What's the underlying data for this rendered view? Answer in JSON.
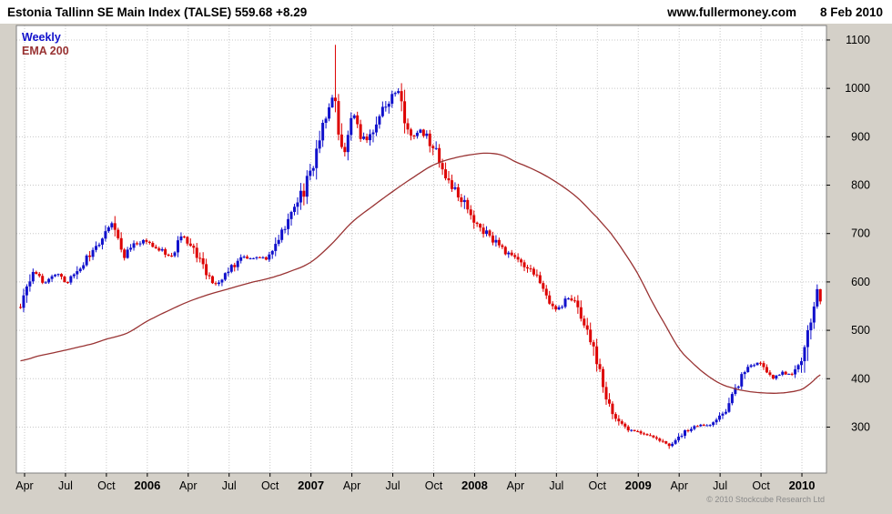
{
  "header": {
    "title": "Estonia Tallinn SE Main Index (TALSE) 559.68 +8.29",
    "site": "www.fullermoney.com",
    "date": "8 Feb 2010"
  },
  "legend": {
    "weekly": "Weekly",
    "ema": "EMA 200"
  },
  "footer": {
    "copyright": "© 2010 Stockcube Research Ltd"
  },
  "colors": {
    "up": "#1111cc",
    "down": "#dd0000",
    "ema": "#993333",
    "grid": "#c8c8c8",
    "frame": "#7f7f7f",
    "panel_bg": "#d4d0c8",
    "plot_bg": "#ffffff",
    "axis_text": "#000000",
    "copyright_text": "#8a8a8a"
  },
  "chart_data": {
    "type": "candlestick",
    "title": "Estonia Tallinn SE Main Index (TALSE)",
    "timeframe": "Weekly",
    "overlay": "EMA 200",
    "last_price": 559.68,
    "change": 8.29,
    "date_shown": "8 Feb 2010",
    "ylim": [
      205,
      1130
    ],
    "yticks": [
      300,
      400,
      500,
      600,
      700,
      800,
      900,
      1000,
      1100
    ],
    "x_months_range": [
      2.4,
      61.8
    ],
    "weeks_total": 255,
    "x_ticks": [
      {
        "m": 3,
        "label": "Apr",
        "bold": false
      },
      {
        "m": 6,
        "label": "Jul",
        "bold": false
      },
      {
        "m": 9,
        "label": "Oct",
        "bold": false
      },
      {
        "m": 12,
        "label": "2006",
        "bold": true
      },
      {
        "m": 15,
        "label": "Apr",
        "bold": false
      },
      {
        "m": 18,
        "label": "Jul",
        "bold": false
      },
      {
        "m": 21,
        "label": "Oct",
        "bold": false
      },
      {
        "m": 24,
        "label": "2007",
        "bold": true
      },
      {
        "m": 27,
        "label": "Apr",
        "bold": false
      },
      {
        "m": 30,
        "label": "Jul",
        "bold": false
      },
      {
        "m": 33,
        "label": "Oct",
        "bold": false
      },
      {
        "m": 36,
        "label": "2008",
        "bold": true
      },
      {
        "m": 39,
        "label": "Apr",
        "bold": false
      },
      {
        "m": 42,
        "label": "Jul",
        "bold": false
      },
      {
        "m": 45,
        "label": "Oct",
        "bold": false
      },
      {
        "m": 48,
        "label": "2009",
        "bold": true
      },
      {
        "m": 51,
        "label": "Apr",
        "bold": false
      },
      {
        "m": 54,
        "label": "Jul",
        "bold": false
      },
      {
        "m": 57,
        "label": "Oct",
        "bold": false
      },
      {
        "m": 60,
        "label": "2010",
        "bold": true
      }
    ],
    "price_monthly": [
      [
        2.7,
        552
      ],
      [
        3.2,
        585
      ],
      [
        3.6,
        618
      ],
      [
        4,
        612
      ],
      [
        4.5,
        598
      ],
      [
        5,
        608
      ],
      [
        5.5,
        615
      ],
      [
        6,
        600
      ],
      [
        6.5,
        612
      ],
      [
        7,
        628
      ],
      [
        7.5,
        645
      ],
      [
        8,
        662
      ],
      [
        8.5,
        680
      ],
      [
        9,
        700
      ],
      [
        9.4,
        716
      ],
      [
        9.8,
        688
      ],
      [
        10.2,
        652
      ],
      [
        10.7,
        668
      ],
      [
        11.2,
        678
      ],
      [
        12,
        686
      ],
      [
        12.5,
        672
      ],
      [
        13,
        668
      ],
      [
        13.5,
        655
      ],
      [
        14,
        662
      ],
      [
        14.4,
        690
      ],
      [
        15,
        684
      ],
      [
        15.5,
        662
      ],
      [
        16,
        640
      ],
      [
        16.5,
        615
      ],
      [
        17,
        598
      ],
      [
        17.5,
        608
      ],
      [
        18,
        622
      ],
      [
        18.5,
        638
      ],
      [
        19,
        650
      ],
      [
        19.5,
        646
      ],
      [
        20,
        652
      ],
      [
        20.5,
        648
      ],
      [
        21,
        658
      ],
      [
        21.5,
        678
      ],
      [
        22,
        706
      ],
      [
        22.5,
        730
      ],
      [
        23,
        762
      ],
      [
        23.5,
        790
      ],
      [
        24,
        828
      ],
      [
        24.5,
        878
      ],
      [
        25,
        930
      ],
      [
        25.5,
        975
      ],
      [
        25.8,
        988
      ],
      [
        26.1,
        905
      ],
      [
        26.5,
        872
      ],
      [
        27,
        948
      ],
      [
        27.5,
        915
      ],
      [
        28,
        892
      ],
      [
        28.5,
        912
      ],
      [
        29,
        942
      ],
      [
        29.6,
        968
      ],
      [
        30,
        988
      ],
      [
        30.4,
        992
      ],
      [
        30.8,
        952
      ],
      [
        31.2,
        912
      ],
      [
        31.6,
        902
      ],
      [
        32,
        912
      ],
      [
        32.5,
        898
      ],
      [
        33,
        878
      ],
      [
        33.5,
        845
      ],
      [
        34,
        812
      ],
      [
        34.5,
        792
      ],
      [
        35,
        772
      ],
      [
        35.5,
        748
      ],
      [
        36,
        722
      ],
      [
        36.5,
        708
      ],
      [
        37,
        698
      ],
      [
        37.5,
        682
      ],
      [
        38,
        668
      ],
      [
        38.5,
        658
      ],
      [
        39,
        648
      ],
      [
        39.5,
        636
      ],
      [
        40,
        625
      ],
      [
        40.5,
        608
      ],
      [
        41,
        590
      ],
      [
        41.5,
        565
      ],
      [
        42,
        542
      ],
      [
        42.5,
        556
      ],
      [
        43,
        568
      ],
      [
        43.5,
        545
      ],
      [
        44,
        522
      ],
      [
        44.5,
        478
      ],
      [
        45,
        432
      ],
      [
        45.5,
        385
      ],
      [
        46,
        335
      ],
      [
        46.5,
        312
      ],
      [
        47,
        298
      ],
      [
        47.5,
        292
      ],
      [
        48,
        290
      ],
      [
        48.5,
        285
      ],
      [
        49,
        282
      ],
      [
        49.5,
        272
      ],
      [
        50,
        265
      ],
      [
        50.4,
        262
      ],
      [
        50.8,
        272
      ],
      [
        51.2,
        282
      ],
      [
        51.6,
        295
      ],
      [
        52,
        300
      ],
      [
        52.5,
        305
      ],
      [
        53,
        303
      ],
      [
        53.5,
        310
      ],
      [
        54,
        320
      ],
      [
        54.5,
        342
      ],
      [
        55,
        372
      ],
      [
        55.5,
        398
      ],
      [
        56,
        420
      ],
      [
        56.5,
        430
      ],
      [
        57,
        428
      ],
      [
        57.5,
        408
      ],
      [
        58,
        402
      ],
      [
        58.5,
        412
      ],
      [
        59,
        408
      ],
      [
        59.5,
        415
      ],
      [
        60,
        438
      ],
      [
        60.4,
        478
      ],
      [
        60.8,
        545
      ],
      [
        61.1,
        588
      ],
      [
        61.35,
        560
      ]
    ],
    "ema_monthly": [
      [
        2.7,
        437
      ],
      [
        4,
        447
      ],
      [
        6,
        459
      ],
      [
        8,
        472
      ],
      [
        9,
        482
      ],
      [
        10.5,
        494
      ],
      [
        12,
        519
      ],
      [
        13.5,
        540
      ],
      [
        15,
        559
      ],
      [
        16.5,
        574
      ],
      [
        18,
        586
      ],
      [
        19.5,
        598
      ],
      [
        21,
        608
      ],
      [
        22.5,
        622
      ],
      [
        24,
        641
      ],
      [
        25.5,
        678
      ],
      [
        27,
        723
      ],
      [
        28.5,
        756
      ],
      [
        30,
        787
      ],
      [
        31.5,
        816
      ],
      [
        33,
        842
      ],
      [
        34.5,
        856
      ],
      [
        36,
        864
      ],
      [
        37,
        866
      ],
      [
        38,
        862
      ],
      [
        39,
        848
      ],
      [
        40.5,
        830
      ],
      [
        42,
        806
      ],
      [
        43.5,
        775
      ],
      [
        45,
        733
      ],
      [
        46,
        700
      ],
      [
        47,
        660
      ],
      [
        48,
        615
      ],
      [
        49,
        560
      ],
      [
        50,
        510
      ],
      [
        51,
        462
      ],
      [
        52,
        432
      ],
      [
        53,
        408
      ],
      [
        54,
        390
      ],
      [
        55,
        380
      ],
      [
        56,
        374
      ],
      [
        57,
        371
      ],
      [
        58,
        370
      ],
      [
        59,
        372
      ],
      [
        60,
        378
      ],
      [
        60.7,
        392
      ],
      [
        61.35,
        408
      ]
    ],
    "extremes": {
      "peak_high": [
        25.8,
        1090
      ],
      "trough_low": [
        50.3,
        255
      ]
    }
  }
}
